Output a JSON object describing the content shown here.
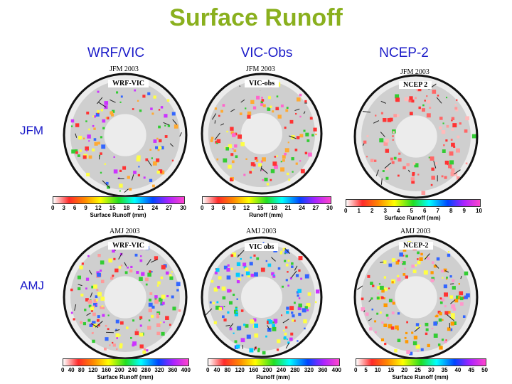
{
  "title": "Surface Runoff",
  "columns": [
    "WRF/VIC",
    "VIC-Obs",
    "NCEP-2"
  ],
  "rows": [
    "JFM",
    "AMJ"
  ],
  "panels": {
    "r1c1": {
      "period": "JFM 2003",
      "tag": "WRF-VIC"
    },
    "r1c2": {
      "period": "JFM 2003",
      "tag": "VIC-obs"
    },
    "r1c3": {
      "period": "JFM 2003",
      "tag": "NCEP 2"
    },
    "r2c1": {
      "period": "AMJ 2003",
      "tag": "WRF-VIC"
    },
    "r2c2": {
      "period": "AMJ 2003",
      "tag": "VIC obs"
    },
    "r2c3": {
      "period": "AMJ 2003",
      "tag": "NCEP-2"
    }
  },
  "colorbars": {
    "r1c1": {
      "ticks": [
        "0",
        "3",
        "6",
        "9",
        "12",
        "15",
        "18",
        "21",
        "24",
        "27",
        "30"
      ],
      "label": "Surface Runoff (mm)"
    },
    "r1c2": {
      "ticks": [
        "0",
        "3",
        "6",
        "9",
        "12",
        "15",
        "18",
        "21",
        "24",
        "27",
        "30"
      ],
      "label": "Runoff (mm)"
    },
    "r1c3": {
      "ticks": [
        "0",
        "1",
        "2",
        "3",
        "4",
        "5",
        "6",
        "7",
        "8",
        "9",
        "10"
      ],
      "label": "Surface Runoff (mm)"
    },
    "r2c1": {
      "ticks": [
        "0",
        "40",
        "80",
        "120",
        "160",
        "200",
        "240",
        "280",
        "320",
        "360",
        "400"
      ],
      "label": "Surface Runoff (mm)"
    },
    "r2c2": {
      "ticks": [
        "0",
        "40",
        "80",
        "120",
        "160",
        "200",
        "240",
        "280",
        "320",
        "360",
        "400"
      ],
      "label": "Runoff (mm)"
    },
    "r2c3": {
      "ticks": [
        "0",
        "5",
        "10",
        "15",
        "20",
        "25",
        "30",
        "35",
        "40",
        "45",
        "50"
      ],
      "label": "Surface Runoff (mm)"
    }
  },
  "colors": {
    "title": "#8ab01e",
    "headers": "#1a1ac8",
    "land": "#cfcfcf",
    "ice": "#ececec"
  }
}
